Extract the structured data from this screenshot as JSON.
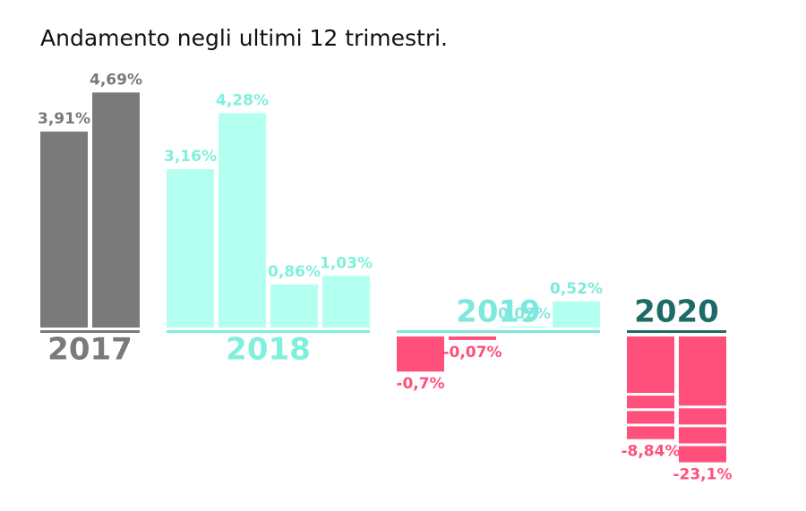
{
  "chart_data": {
    "type": "bar",
    "title": "Andamento negli ultimi 12 trimestri.",
    "negative_color": "#ff4f7b",
    "series": [
      {
        "name": "2017",
        "color": "#7a7a7a",
        "label_color": "#7a7a7a",
        "values": [
          3.91,
          4.69
        ],
        "value_labels": [
          "3,91%",
          "4,69%"
        ]
      },
      {
        "name": "2018",
        "color": "#b3fff0",
        "label_color": "#7ff0dc",
        "values": [
          3.16,
          4.28,
          0.86,
          1.03
        ],
        "value_labels": [
          "3,16%",
          "4,28%",
          "0,86%",
          "1,03%"
        ]
      },
      {
        "name": "2019",
        "color": "#b3fff0",
        "label_color": "#7fe8dc",
        "values": [
          -0.7,
          -0.07,
          0.02,
          0.52
        ],
        "value_labels": [
          "-0,7%",
          "-0,07%",
          "0,02%",
          "0,52%"
        ]
      },
      {
        "name": "2020",
        "color": "#ff4f7b",
        "label_color": "#1d6a66",
        "values": [
          -8.84,
          -23.1
        ],
        "value_labels": [
          "-8,84%",
          "-23,1%"
        ]
      }
    ]
  }
}
